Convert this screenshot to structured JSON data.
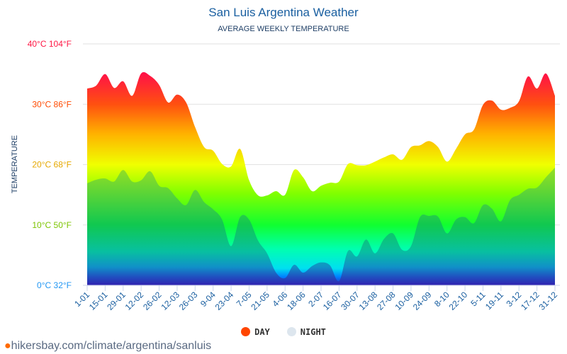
{
  "chart_data": {
    "type": "area",
    "title": "San Luis Argentina Weather",
    "subtitle": "AVERAGE WEEKLY TEMPERATURE",
    "ylabel": "TEMPERATURE",
    "ylim": [
      0,
      40
    ],
    "yticks": [
      {
        "v": 0,
        "label": "0°C 32°F",
        "color": "#2196f3"
      },
      {
        "v": 10,
        "label": "10°C 50°F",
        "color": "#7cc400"
      },
      {
        "v": 20,
        "label": "20°C 68°F",
        "color": "#e6a800"
      },
      {
        "v": 30,
        "label": "30°C 86°F",
        "color": "#ff4a00"
      },
      {
        "v": 40,
        "label": "40°C 104°F",
        "color": "#ff1744"
      }
    ],
    "xticks": [
      "1-01",
      "15-01",
      "29-01",
      "12-02",
      "26-02",
      "12-03",
      "26-03",
      "9-04",
      "23-04",
      "7-05",
      "21-05",
      "4-06",
      "18-06",
      "2-07",
      "16-07",
      "30-07",
      "13-08",
      "27-08",
      "10-09",
      "24-09",
      "8-10",
      "22-10",
      "5-11",
      "19-11",
      "3-12",
      "17-12",
      "31-12"
    ],
    "grid": true,
    "legend_position": "bottom",
    "series": [
      {
        "name": "DAY",
        "color": "#ff4500",
        "values": [
          32.6,
          33.1,
          35.0,
          32.7,
          33.8,
          31.4,
          35.1,
          34.7,
          33.2,
          30.3,
          31.6,
          30.3,
          26.2,
          22.9,
          22.3,
          20.1,
          19.7,
          22.6,
          17.4,
          14.9,
          14.9,
          15.6,
          15.0,
          19.1,
          17.9,
          15.6,
          16.5,
          17.0,
          17.2,
          20.1,
          19.9,
          19.9,
          20.5,
          21.2,
          21.7,
          20.8,
          22.9,
          23.2,
          23.9,
          22.9,
          20.5,
          22.6,
          25.0,
          25.8,
          29.9,
          30.6,
          29.1,
          29.4,
          30.5,
          34.6,
          32.6,
          35.1,
          31.4
        ]
      },
      {
        "name": "NIGHT",
        "color": "#dde6ee",
        "values": [
          16.9,
          17.5,
          17.7,
          17.2,
          19.1,
          17.2,
          17.4,
          18.9,
          16.5,
          16.1,
          14.4,
          13.3,
          15.8,
          13.8,
          12.6,
          10.9,
          6.5,
          11.3,
          10.9,
          7.4,
          5.3,
          2.1,
          1.2,
          3.4,
          2.1,
          3.2,
          3.8,
          3.3,
          0.7,
          5.7,
          4.8,
          7.6,
          5.3,
          7.7,
          8.6,
          5.9,
          6.5,
          11.3,
          11.5,
          11.4,
          8.6,
          10.9,
          11.3,
          10.3,
          13.3,
          12.7,
          10.6,
          14.1,
          15.0,
          16.0,
          16.2,
          17.9,
          19.5
        ]
      }
    ]
  },
  "footer": {
    "url": "hikersbay.com/climate/argentina/sanluis",
    "icon": "map-pin-icon"
  }
}
